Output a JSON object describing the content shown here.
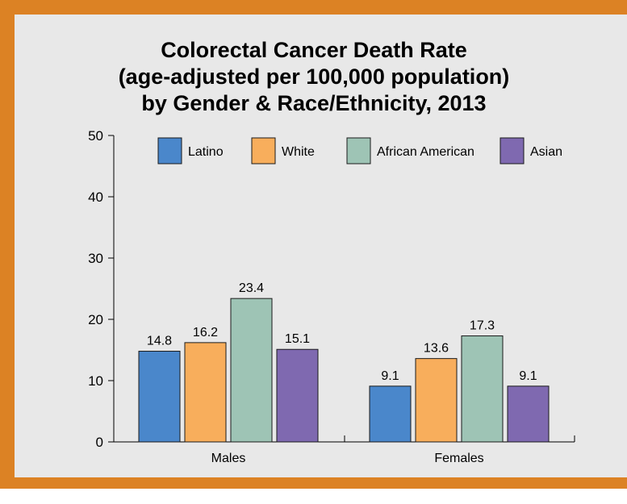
{
  "chart_data": {
    "type": "bar",
    "title": [
      "Colorectal Cancer Death Rate",
      "(age-adjusted per 100,000 population)",
      "by Gender & Race/Ethnicity, 2013"
    ],
    "categories": [
      "Males",
      "Females"
    ],
    "series": [
      {
        "name": "Latino",
        "values": [
          14.8,
          9.1
        ],
        "color": "#4a87cb"
      },
      {
        "name": "White",
        "values": [
          16.2,
          13.6
        ],
        "color": "#f8ae5c"
      },
      {
        "name": "African American",
        "values": [
          23.4,
          17.3
        ],
        "color": "#9ec4b5"
      },
      {
        "name": "Asian",
        "values": [
          15.1,
          9.1
        ],
        "color": "#7f69b0"
      }
    ],
    "ylim": [
      0,
      50
    ],
    "yticks": [
      0,
      10,
      20,
      30,
      40,
      50
    ],
    "xlabel": "",
    "ylabel": "",
    "grid": false,
    "legend_placement": "top"
  },
  "colors": {
    "frame": "#dc8224",
    "panel": "#e8e8e8"
  }
}
